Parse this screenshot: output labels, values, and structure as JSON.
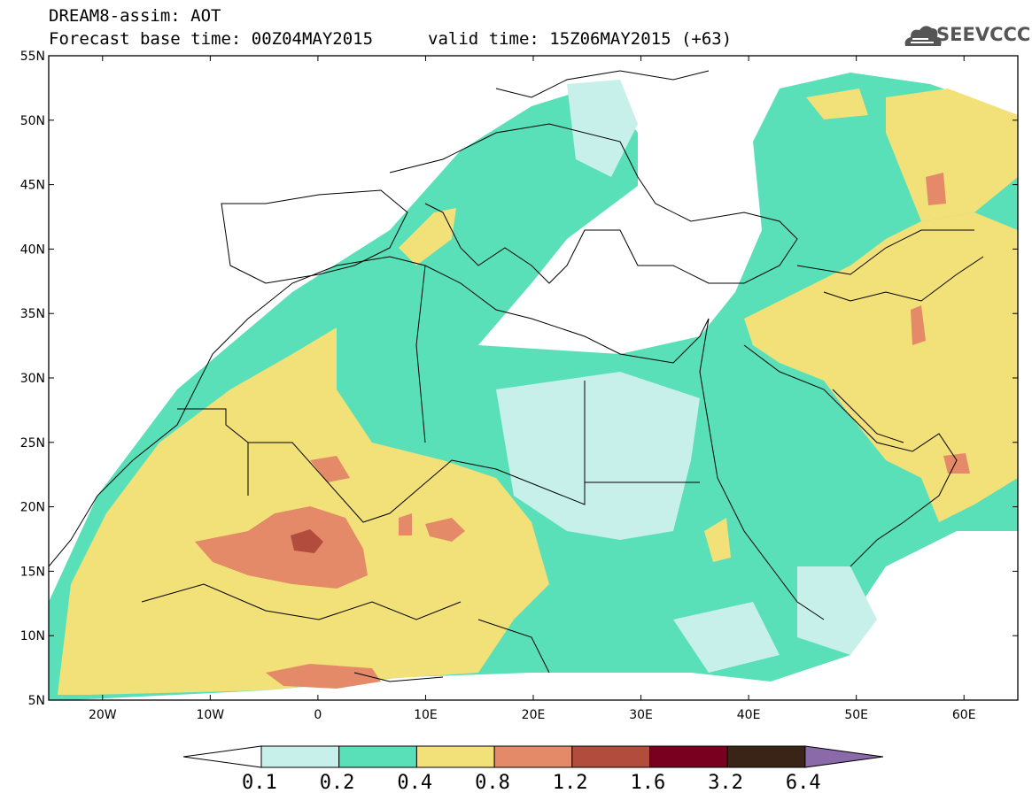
{
  "header": {
    "line1": "DREAM8-assim: AOT",
    "line2": "Forecast base time: 00Z04MAY2015",
    "line2b": "valid time: 15Z06MAY2015 (+63)"
  },
  "logo": {
    "text": "SEEVCCC",
    "icon": "cloud-icon"
  },
  "map": {
    "lat_labels": [
      "55N",
      "50N",
      "45N",
      "40N",
      "35N",
      "30N",
      "25N",
      "20N",
      "15N",
      "10N",
      "5N"
    ],
    "lon_labels": [
      "20W",
      "10W",
      "0",
      "10E",
      "20E",
      "30E",
      "40E",
      "50E",
      "60E"
    ],
    "lon_range": [
      -25,
      65
    ],
    "lat_range": [
      5,
      55
    ]
  },
  "colorbar": {
    "labels": [
      "0.1",
      "0.2",
      "0.4",
      "0.8",
      "1.2",
      "1.6",
      "3.2",
      "6.4"
    ],
    "colors": [
      "#ffffff",
      "#c8f0ea",
      "#5ae0b8",
      "#f2e078",
      "#e58a68",
      "#b24c3c",
      "#7a0020",
      "#3a2418",
      "#8a6aa8"
    ]
  }
}
